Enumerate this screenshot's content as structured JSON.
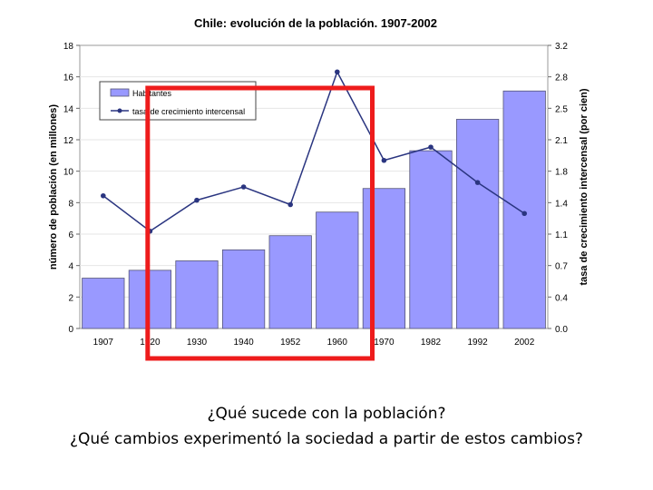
{
  "chart_data": {
    "type": "bar",
    "title": "Chile: evolución de la población. 1907-2002",
    "categories": [
      "1907",
      "1920",
      "1930",
      "1940",
      "1952",
      "1960",
      "1970",
      "1982",
      "1992",
      "2002"
    ],
    "series": [
      {
        "name": "Habitantes",
        "type": "bar",
        "axis": "left",
        "values": [
          3.2,
          3.7,
          4.3,
          5.0,
          5.9,
          7.4,
          8.9,
          11.3,
          13.3,
          15.1
        ]
      },
      {
        "name": "tasa de crecimiento intercensal",
        "type": "line",
        "axis": "right",
        "values": [
          1.5,
          1.1,
          1.45,
          1.6,
          1.4,
          2.9,
          1.9,
          2.05,
          1.65,
          1.3
        ]
      }
    ],
    "ylabel": "número de población (en millones)",
    "ylim": [
      0,
      18
    ],
    "yticks": [
      "0",
      "2",
      "4",
      "6",
      "8",
      "10",
      "12",
      "14",
      "16",
      "18"
    ],
    "y2label": "tasa de crecimiento intercensal (por cien)",
    "y2lim": [
      0,
      3.2
    ],
    "y2ticks": [
      "0.0",
      "0.4",
      "0.7",
      "1.1",
      "1.4",
      "1.8",
      "2.1",
      "2.5",
      "2.8",
      "3.2"
    ],
    "legend": "top-left",
    "highlight_categories": [
      "1920",
      "1960"
    ]
  },
  "colors": {
    "bar": "#9999ff",
    "bar_stroke": "#555577",
    "line": "#2a3580",
    "highlight": "#ee1c1c",
    "plot_bg": "#ffffff",
    "grid": "#e6e6e6"
  },
  "questions": {
    "q1": "¿Qué sucede con la población?",
    "q2": "¿Qué cambios experimentó la sociedad a partir de estos cambios?"
  }
}
